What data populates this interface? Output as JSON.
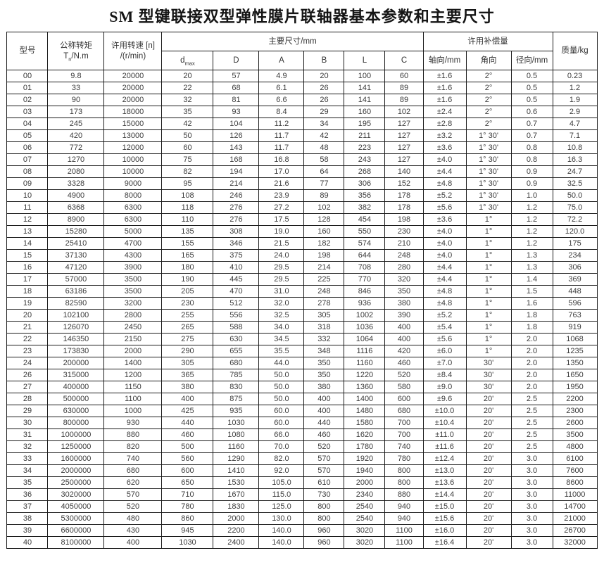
{
  "title": "SM 型键联接双型弹性膜片联轴器基本参数和主要尺寸",
  "table": {
    "header": {
      "model": "型号",
      "torque_line1": "公称转矩",
      "torque_main": "T",
      "torque_sub": "n",
      "torque_rest": "/N.m",
      "speed_line1": "许用转速 [n]",
      "speed_line2": "/(r/min)",
      "dims_group": "主要尺寸/mm",
      "comp_group": "许用补偿量",
      "mass": "质量/kg",
      "dmax_main": "d",
      "dmax_sub": "max",
      "col_D": "D",
      "col_A": "A",
      "col_B": "B",
      "col_L": "L",
      "col_C": "C",
      "axial": "轴向/mm",
      "angular": "角向",
      "radial": "径向/mm"
    },
    "rows": [
      [
        "00",
        "9.8",
        "20000",
        "20",
        "57",
        "4.9",
        "20",
        "100",
        "60",
        "±1.6",
        "2°",
        "0.5",
        "0.23"
      ],
      [
        "01",
        "33",
        "20000",
        "22",
        "68",
        "6.1",
        "26",
        "141",
        "89",
        "±1.6",
        "2°",
        "0.5",
        "1.2"
      ],
      [
        "02",
        "90",
        "20000",
        "32",
        "81",
        "6.6",
        "26",
        "141",
        "89",
        "±1.6",
        "2°",
        "0.5",
        "1.9"
      ],
      [
        "03",
        "173",
        "18000",
        "35",
        "93",
        "8.4",
        "29",
        "160",
        "102",
        "±2.4",
        "2°",
        "0.6",
        "2.9"
      ],
      [
        "04",
        "245",
        "15000",
        "42",
        "104",
        "11.2",
        "34",
        "195",
        "127",
        "±2.8",
        "2°",
        "0.7",
        "4.7"
      ],
      [
        "05",
        "420",
        "13000",
        "50",
        "126",
        "11.7",
        "42",
        "211",
        "127",
        "±3.2",
        "1° 30'",
        "0.7",
        "7.1"
      ],
      [
        "06",
        "772",
        "12000",
        "60",
        "143",
        "11.7",
        "48",
        "223",
        "127",
        "±3.6",
        "1° 30'",
        "0.8",
        "10.8"
      ],
      [
        "07",
        "1270",
        "10000",
        "75",
        "168",
        "16.8",
        "58",
        "243",
        "127",
        "±4.0",
        "1° 30'",
        "0.8",
        "16.3"
      ],
      [
        "08",
        "2080",
        "10000",
        "82",
        "194",
        "17.0",
        "64",
        "268",
        "140",
        "±4.4",
        "1° 30'",
        "0.9",
        "24.7"
      ],
      [
        "09",
        "3328",
        "9000",
        "95",
        "214",
        "21.6",
        "77",
        "306",
        "152",
        "±4.8",
        "1° 30'",
        "0.9",
        "32.5"
      ],
      [
        "10",
        "4900",
        "8000",
        "108",
        "246",
        "23.9",
        "89",
        "356",
        "178",
        "±5.2",
        "1° 30'",
        "1.0",
        "50.0"
      ],
      [
        "11",
        "6368",
        "6300",
        "118",
        "276",
        "27.2",
        "102",
        "382",
        "178",
        "±5.6",
        "1° 30'",
        "1.2",
        "75.0"
      ],
      [
        "12",
        "8900",
        "6300",
        "110",
        "276",
        "17.5",
        "128",
        "454",
        "198",
        "±3.6",
        "1°",
        "1.2",
        "72.2"
      ],
      [
        "13",
        "15280",
        "5000",
        "135",
        "308",
        "19.0",
        "160",
        "550",
        "230",
        "±4.0",
        "1°",
        "1.2",
        "120.0"
      ],
      [
        "14",
        "25410",
        "4700",
        "155",
        "346",
        "21.5",
        "182",
        "574",
        "210",
        "±4.0",
        "1°",
        "1.2",
        "175"
      ],
      [
        "15",
        "37130",
        "4300",
        "165",
        "375",
        "24.0",
        "198",
        "644",
        "248",
        "±4.0",
        "1°",
        "1.3",
        "234"
      ],
      [
        "16",
        "47120",
        "3900",
        "180",
        "410",
        "29.5",
        "214",
        "708",
        "280",
        "±4.4",
        "1°",
        "1.3",
        "306"
      ],
      [
        "17",
        "57000",
        "3500",
        "190",
        "445",
        "29.5",
        "225",
        "770",
        "320",
        "±4.4",
        "1°",
        "1.4",
        "369"
      ],
      [
        "18",
        "63186",
        "3500",
        "205",
        "470",
        "31.0",
        "248",
        "846",
        "350",
        "±4.8",
        "1°",
        "1.5",
        "448"
      ],
      [
        "19",
        "82590",
        "3200",
        "230",
        "512",
        "32.0",
        "278",
        "936",
        "380",
        "±4.8",
        "1°",
        "1.6",
        "596"
      ],
      [
        "20",
        "102100",
        "2800",
        "255",
        "556",
        "32.5",
        "305",
        "1002",
        "390",
        "±5.2",
        "1°",
        "1.8",
        "763"
      ],
      [
        "21",
        "126070",
        "2450",
        "265",
        "588",
        "34.0",
        "318",
        "1036",
        "400",
        "±5.4",
        "1°",
        "1.8",
        "919"
      ],
      [
        "22",
        "146350",
        "2150",
        "275",
        "630",
        "34.5",
        "332",
        "1064",
        "400",
        "±5.6",
        "1°",
        "2.0",
        "1068"
      ],
      [
        "23",
        "173830",
        "2000",
        "290",
        "655",
        "35.5",
        "348",
        "1116",
        "420",
        "±6.0",
        "1°",
        "2.0",
        "1235"
      ],
      [
        "24",
        "200000",
        "1400",
        "305",
        "680",
        "44.0",
        "350",
        "1160",
        "460",
        "±7.0",
        "30'",
        "2.0",
        "1350"
      ],
      [
        "26",
        "315000",
        "1200",
        "365",
        "785",
        "50.0",
        "350",
        "1220",
        "520",
        "±8.4",
        "30'",
        "2.0",
        "1650"
      ],
      [
        "27",
        "400000",
        "1150",
        "380",
        "830",
        "50.0",
        "380",
        "1360",
        "580",
        "±9.0",
        "30'",
        "2.0",
        "1950"
      ],
      [
        "28",
        "500000",
        "1100",
        "400",
        "875",
        "50.0",
        "400",
        "1400",
        "600",
        "±9.6",
        "20'",
        "2.5",
        "2200"
      ],
      [
        "29",
        "630000",
        "1000",
        "425",
        "935",
        "60.0",
        "400",
        "1480",
        "680",
        "±10.0",
        "20'",
        "2.5",
        "2300"
      ],
      [
        "30",
        "800000",
        "930",
        "440",
        "1030",
        "60.0",
        "440",
        "1580",
        "700",
        "±10.4",
        "20'",
        "2.5",
        "2600"
      ],
      [
        "31",
        "1000000",
        "880",
        "460",
        "1080",
        "66.0",
        "460",
        "1620",
        "700",
        "±11.0",
        "20'",
        "2.5",
        "3500"
      ],
      [
        "32",
        "1250000",
        "820",
        "500",
        "1160",
        "70.0",
        "520",
        "1780",
        "740",
        "±11.6",
        "20'",
        "2.5",
        "4800"
      ],
      [
        "33",
        "1600000",
        "740",
        "560",
        "1290",
        "82.0",
        "570",
        "1920",
        "780",
        "±12.4",
        "20'",
        "3.0",
        "6100"
      ],
      [
        "34",
        "2000000",
        "680",
        "600",
        "1410",
        "92.0",
        "570",
        "1940",
        "800",
        "±13.0",
        "20'",
        "3.0",
        "7600"
      ],
      [
        "35",
        "2500000",
        "620",
        "650",
        "1530",
        "105.0",
        "610",
        "2000",
        "800",
        "±13.6",
        "20'",
        "3.0",
        "8600"
      ],
      [
        "36",
        "3020000",
        "570",
        "710",
        "1670",
        "115.0",
        "730",
        "2340",
        "880",
        "±14.4",
        "20'",
        "3.0",
        "11000"
      ],
      [
        "37",
        "4050000",
        "520",
        "780",
        "1830",
        "125.0",
        "800",
        "2540",
        "940",
        "±15.0",
        "20'",
        "3.0",
        "14700"
      ],
      [
        "38",
        "5300000",
        "480",
        "860",
        "2000",
        "130.0",
        "800",
        "2540",
        "940",
        "±15.6",
        "20'",
        "3.0",
        "21000"
      ],
      [
        "39",
        "6600000",
        "430",
        "945",
        "2200",
        "140.0",
        "960",
        "3020",
        "1100",
        "±16.0",
        "20'",
        "3.0",
        "26700"
      ],
      [
        "40",
        "8100000",
        "400",
        "1030",
        "2400",
        "140.0",
        "960",
        "3020",
        "1100",
        "±16.4",
        "20'",
        "3.0",
        "32000"
      ]
    ]
  }
}
